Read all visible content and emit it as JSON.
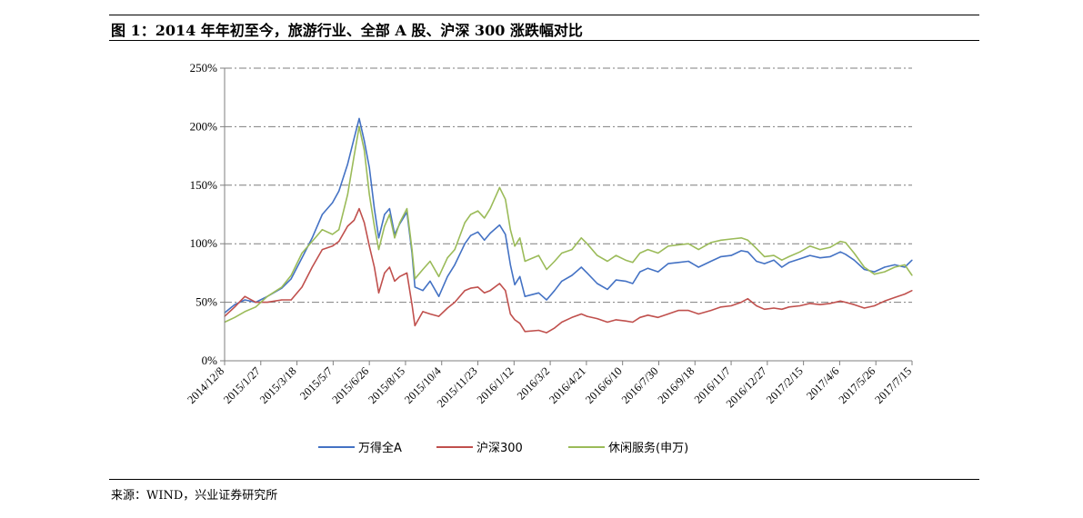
{
  "header": {
    "title": "图 1：2014 年年初至今，旅游行业、全部 A 股、沪深 300 涨跌幅对比"
  },
  "footer": {
    "source": "来源：WIND，兴业证券研究所"
  },
  "colors": {
    "axis": "#7f7f7f",
    "gridline": "#7f7f7f"
  },
  "chart_data": {
    "type": "line",
    "title": "",
    "xlabel": "",
    "ylabel": "",
    "ylim": [
      0,
      2.5
    ],
    "y_ticks": [
      {
        "value": 0,
        "label": "0%"
      },
      {
        "value": 0.5,
        "label": "50%"
      },
      {
        "value": 1.0,
        "label": "100%"
      },
      {
        "value": 1.5,
        "label": "150%"
      },
      {
        "value": 2.0,
        "label": "200%"
      },
      {
        "value": 2.5,
        "label": "250%"
      }
    ],
    "x_range": [
      "2014-12-08",
      "2017-07-15"
    ],
    "x_ticks": [
      "2014/12/8",
      "2015/1/27",
      "2015/3/18",
      "2015/5/7",
      "2015/6/26",
      "2015/8/15",
      "2015/10/4",
      "2015/11/23",
      "2016/1/12",
      "2016/3/2",
      "2016/4/21",
      "2016/6/10",
      "2016/7/30",
      "2016/9/18",
      "2016/11/7",
      "2016/12/27",
      "2017/2/15",
      "2017/4/6",
      "2017/5/26",
      "2017/7/15"
    ],
    "grid": "horizontal dash-dot",
    "legend_position": "bottom",
    "series": [
      {
        "name": "万得全A",
        "color": "#4472c4",
        "points": [
          [
            "2014-12-08",
            0.41
          ],
          [
            "2014-12-22",
            0.48
          ],
          [
            "2015-01-05",
            0.52
          ],
          [
            "2015-01-20",
            0.5
          ],
          [
            "2015-02-05",
            0.55
          ],
          [
            "2015-02-25",
            0.62
          ],
          [
            "2015-03-10",
            0.7
          ],
          [
            "2015-03-25",
            0.88
          ],
          [
            "2015-04-08",
            1.05
          ],
          [
            "2015-04-22",
            1.25
          ],
          [
            "2015-05-06",
            1.35
          ],
          [
            "2015-05-15",
            1.45
          ],
          [
            "2015-05-27",
            1.68
          ],
          [
            "2015-06-05",
            1.9
          ],
          [
            "2015-06-12",
            2.07
          ],
          [
            "2015-06-19",
            1.88
          ],
          [
            "2015-06-26",
            1.65
          ],
          [
            "2015-07-03",
            1.3
          ],
          [
            "2015-07-09",
            1.05
          ],
          [
            "2015-07-17",
            1.25
          ],
          [
            "2015-07-24",
            1.3
          ],
          [
            "2015-07-31",
            1.08
          ],
          [
            "2015-08-07",
            1.17
          ],
          [
            "2015-08-17",
            1.27
          ],
          [
            "2015-08-24",
            0.92
          ],
          [
            "2015-08-28",
            0.63
          ],
          [
            "2015-09-08",
            0.6
          ],
          [
            "2015-09-18",
            0.68
          ],
          [
            "2015-09-30",
            0.55
          ],
          [
            "2015-10-12",
            0.72
          ],
          [
            "2015-10-22",
            0.82
          ],
          [
            "2015-11-05",
            1.0
          ],
          [
            "2015-11-13",
            1.07
          ],
          [
            "2015-11-23",
            1.1
          ],
          [
            "2015-12-02",
            1.03
          ],
          [
            "2015-12-10",
            1.09
          ],
          [
            "2015-12-23",
            1.16
          ],
          [
            "2015-12-31",
            1.08
          ],
          [
            "2016-01-07",
            0.82
          ],
          [
            "2016-01-13",
            0.65
          ],
          [
            "2016-01-20",
            0.72
          ],
          [
            "2016-01-27",
            0.55
          ],
          [
            "2016-02-15",
            0.58
          ],
          [
            "2016-02-26",
            0.52
          ],
          [
            "2016-03-08",
            0.6
          ],
          [
            "2016-03-18",
            0.68
          ],
          [
            "2016-04-01",
            0.73
          ],
          [
            "2016-04-14",
            0.8
          ],
          [
            "2016-04-22",
            0.75
          ],
          [
            "2016-05-06",
            0.66
          ],
          [
            "2016-05-20",
            0.61
          ],
          [
            "2016-06-01",
            0.69
          ],
          [
            "2016-06-14",
            0.68
          ],
          [
            "2016-06-24",
            0.66
          ],
          [
            "2016-07-04",
            0.76
          ],
          [
            "2016-07-15",
            0.79
          ],
          [
            "2016-07-29",
            0.76
          ],
          [
            "2016-08-12",
            0.83
          ],
          [
            "2016-08-26",
            0.84
          ],
          [
            "2016-09-09",
            0.85
          ],
          [
            "2016-09-23",
            0.8
          ],
          [
            "2016-10-10",
            0.85
          ],
          [
            "2016-10-24",
            0.89
          ],
          [
            "2016-11-07",
            0.9
          ],
          [
            "2016-11-21",
            0.94
          ],
          [
            "2016-11-30",
            0.93
          ],
          [
            "2016-12-12",
            0.85
          ],
          [
            "2016-12-23",
            0.83
          ],
          [
            "2017-01-05",
            0.86
          ],
          [
            "2017-01-16",
            0.8
          ],
          [
            "2017-01-26",
            0.84
          ],
          [
            "2017-02-10",
            0.87
          ],
          [
            "2017-02-24",
            0.9
          ],
          [
            "2017-03-10",
            0.88
          ],
          [
            "2017-03-24",
            0.89
          ],
          [
            "2017-04-07",
            0.93
          ],
          [
            "2017-04-14",
            0.91
          ],
          [
            "2017-04-26",
            0.86
          ],
          [
            "2017-05-10",
            0.78
          ],
          [
            "2017-05-24",
            0.76
          ],
          [
            "2017-06-07",
            0.8
          ],
          [
            "2017-06-21",
            0.82
          ],
          [
            "2017-07-05",
            0.8
          ],
          [
            "2017-07-15",
            0.86
          ]
        ]
      },
      {
        "name": "沪深300",
        "color": "#c0504d",
        "points": [
          [
            "2014-12-08",
            0.38
          ],
          [
            "2014-12-22",
            0.46
          ],
          [
            "2015-01-05",
            0.55
          ],
          [
            "2015-01-20",
            0.5
          ],
          [
            "2015-02-05",
            0.5
          ],
          [
            "2015-02-25",
            0.52
          ],
          [
            "2015-03-10",
            0.52
          ],
          [
            "2015-03-25",
            0.63
          ],
          [
            "2015-04-08",
            0.8
          ],
          [
            "2015-04-22",
            0.95
          ],
          [
            "2015-05-06",
            0.98
          ],
          [
            "2015-05-15",
            1.02
          ],
          [
            "2015-05-27",
            1.15
          ],
          [
            "2015-06-05",
            1.2
          ],
          [
            "2015-06-12",
            1.3
          ],
          [
            "2015-06-19",
            1.18
          ],
          [
            "2015-06-26",
            0.98
          ],
          [
            "2015-07-03",
            0.8
          ],
          [
            "2015-07-09",
            0.58
          ],
          [
            "2015-07-17",
            0.75
          ],
          [
            "2015-07-24",
            0.8
          ],
          [
            "2015-07-31",
            0.68
          ],
          [
            "2015-08-07",
            0.72
          ],
          [
            "2015-08-17",
            0.75
          ],
          [
            "2015-08-24",
            0.48
          ],
          [
            "2015-08-28",
            0.3
          ],
          [
            "2015-09-08",
            0.42
          ],
          [
            "2015-09-18",
            0.4
          ],
          [
            "2015-09-30",
            0.38
          ],
          [
            "2015-10-12",
            0.45
          ],
          [
            "2015-10-22",
            0.5
          ],
          [
            "2015-11-05",
            0.6
          ],
          [
            "2015-11-13",
            0.62
          ],
          [
            "2015-11-23",
            0.63
          ],
          [
            "2015-12-02",
            0.58
          ],
          [
            "2015-12-10",
            0.6
          ],
          [
            "2015-12-23",
            0.66
          ],
          [
            "2015-12-31",
            0.6
          ],
          [
            "2016-01-07",
            0.4
          ],
          [
            "2016-01-13",
            0.35
          ],
          [
            "2016-01-20",
            0.32
          ],
          [
            "2016-01-27",
            0.25
          ],
          [
            "2016-02-15",
            0.26
          ],
          [
            "2016-02-26",
            0.24
          ],
          [
            "2016-03-08",
            0.28
          ],
          [
            "2016-03-18",
            0.33
          ],
          [
            "2016-04-01",
            0.37
          ],
          [
            "2016-04-14",
            0.4
          ],
          [
            "2016-04-22",
            0.38
          ],
          [
            "2016-05-06",
            0.36
          ],
          [
            "2016-05-20",
            0.33
          ],
          [
            "2016-06-01",
            0.35
          ],
          [
            "2016-06-14",
            0.34
          ],
          [
            "2016-06-24",
            0.33
          ],
          [
            "2016-07-04",
            0.37
          ],
          [
            "2016-07-15",
            0.39
          ],
          [
            "2016-07-29",
            0.37
          ],
          [
            "2016-08-12",
            0.4
          ],
          [
            "2016-08-26",
            0.43
          ],
          [
            "2016-09-09",
            0.43
          ],
          [
            "2016-09-23",
            0.4
          ],
          [
            "2016-10-10",
            0.43
          ],
          [
            "2016-10-24",
            0.46
          ],
          [
            "2016-11-07",
            0.47
          ],
          [
            "2016-11-21",
            0.5
          ],
          [
            "2016-11-30",
            0.53
          ],
          [
            "2016-12-12",
            0.47
          ],
          [
            "2016-12-23",
            0.44
          ],
          [
            "2017-01-05",
            0.45
          ],
          [
            "2017-01-16",
            0.44
          ],
          [
            "2017-01-26",
            0.46
          ],
          [
            "2017-02-10",
            0.47
          ],
          [
            "2017-02-24",
            0.49
          ],
          [
            "2017-03-10",
            0.48
          ],
          [
            "2017-03-24",
            0.49
          ],
          [
            "2017-04-07",
            0.51
          ],
          [
            "2017-04-14",
            0.5
          ],
          [
            "2017-04-26",
            0.48
          ],
          [
            "2017-05-10",
            0.45
          ],
          [
            "2017-05-24",
            0.47
          ],
          [
            "2017-06-07",
            0.51
          ],
          [
            "2017-06-21",
            0.54
          ],
          [
            "2017-07-05",
            0.57
          ],
          [
            "2017-07-15",
            0.6
          ]
        ]
      },
      {
        "name": "休闲服务(申万)",
        "color": "#9bbb59",
        "points": [
          [
            "2014-12-08",
            0.33
          ],
          [
            "2014-12-22",
            0.37
          ],
          [
            "2015-01-05",
            0.42
          ],
          [
            "2015-01-20",
            0.46
          ],
          [
            "2015-02-05",
            0.55
          ],
          [
            "2015-02-25",
            0.63
          ],
          [
            "2015-03-10",
            0.73
          ],
          [
            "2015-03-25",
            0.92
          ],
          [
            "2015-04-08",
            1.02
          ],
          [
            "2015-04-22",
            1.12
          ],
          [
            "2015-05-06",
            1.08
          ],
          [
            "2015-05-15",
            1.12
          ],
          [
            "2015-05-27",
            1.42
          ],
          [
            "2015-06-05",
            1.75
          ],
          [
            "2015-06-12",
            2.0
          ],
          [
            "2015-06-19",
            1.8
          ],
          [
            "2015-06-26",
            1.42
          ],
          [
            "2015-07-03",
            1.15
          ],
          [
            "2015-07-09",
            0.95
          ],
          [
            "2015-07-17",
            1.15
          ],
          [
            "2015-07-24",
            1.25
          ],
          [
            "2015-07-31",
            1.05
          ],
          [
            "2015-08-07",
            1.18
          ],
          [
            "2015-08-17",
            1.3
          ],
          [
            "2015-08-24",
            0.95
          ],
          [
            "2015-08-28",
            0.7
          ],
          [
            "2015-09-08",
            0.78
          ],
          [
            "2015-09-18",
            0.85
          ],
          [
            "2015-09-30",
            0.72
          ],
          [
            "2015-10-12",
            0.88
          ],
          [
            "2015-10-22",
            0.95
          ],
          [
            "2015-11-05",
            1.18
          ],
          [
            "2015-11-13",
            1.25
          ],
          [
            "2015-11-23",
            1.28
          ],
          [
            "2015-12-02",
            1.22
          ],
          [
            "2015-12-10",
            1.3
          ],
          [
            "2015-12-23",
            1.48
          ],
          [
            "2015-12-31",
            1.38
          ],
          [
            "2016-01-07",
            1.12
          ],
          [
            "2016-01-13",
            0.98
          ],
          [
            "2016-01-20",
            1.05
          ],
          [
            "2016-01-27",
            0.85
          ],
          [
            "2016-02-15",
            0.9
          ],
          [
            "2016-02-26",
            0.78
          ],
          [
            "2016-03-08",
            0.85
          ],
          [
            "2016-03-18",
            0.92
          ],
          [
            "2016-04-01",
            0.95
          ],
          [
            "2016-04-14",
            1.05
          ],
          [
            "2016-04-22",
            1.0
          ],
          [
            "2016-05-06",
            0.9
          ],
          [
            "2016-05-20",
            0.85
          ],
          [
            "2016-06-01",
            0.9
          ],
          [
            "2016-06-14",
            0.86
          ],
          [
            "2016-06-24",
            0.84
          ],
          [
            "2016-07-04",
            0.92
          ],
          [
            "2016-07-15",
            0.95
          ],
          [
            "2016-07-29",
            0.92
          ],
          [
            "2016-08-12",
            0.98
          ],
          [
            "2016-08-26",
            0.99
          ],
          [
            "2016-09-09",
            1.0
          ],
          [
            "2016-09-23",
            0.95
          ],
          [
            "2016-10-10",
            1.01
          ],
          [
            "2016-10-24",
            1.03
          ],
          [
            "2016-11-07",
            1.04
          ],
          [
            "2016-11-21",
            1.05
          ],
          [
            "2016-11-30",
            1.03
          ],
          [
            "2016-12-12",
            0.96
          ],
          [
            "2016-12-23",
            0.89
          ],
          [
            "2017-01-05",
            0.9
          ],
          [
            "2017-01-16",
            0.86
          ],
          [
            "2017-01-26",
            0.89
          ],
          [
            "2017-02-10",
            0.93
          ],
          [
            "2017-02-24",
            0.98
          ],
          [
            "2017-03-10",
            0.95
          ],
          [
            "2017-03-24",
            0.97
          ],
          [
            "2017-04-07",
            1.02
          ],
          [
            "2017-04-14",
            1.01
          ],
          [
            "2017-04-26",
            0.92
          ],
          [
            "2017-05-10",
            0.8
          ],
          [
            "2017-05-24",
            0.74
          ],
          [
            "2017-06-07",
            0.76
          ],
          [
            "2017-06-21",
            0.8
          ],
          [
            "2017-07-05",
            0.82
          ],
          [
            "2017-07-15",
            0.73
          ]
        ]
      }
    ]
  }
}
